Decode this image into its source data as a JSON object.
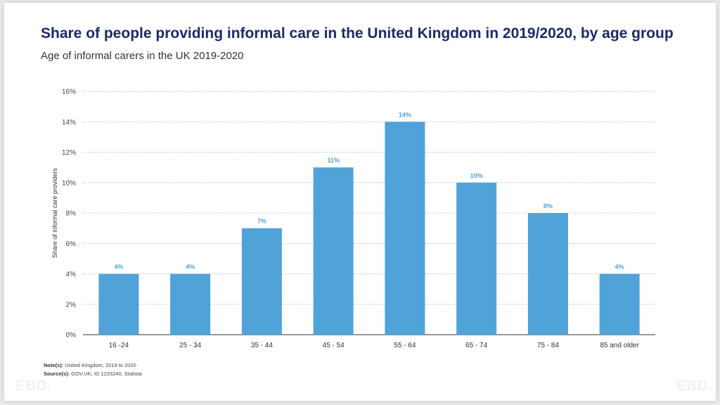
{
  "title": "Share of people providing informal care in the United Kingdom in 2019/2020, by age group",
  "subtitle": "Age of informal carers in the UK 2019-2020",
  "notes": {
    "note_label": "Note(s):",
    "note_text": " United Kingdom; 2019 to 2020",
    "source_label": "Source(s):",
    "source_text": " GOV.UK; ID 1233240, Statista"
  },
  "logo": "EBD.",
  "chart_data": {
    "type": "bar",
    "categories": [
      "16 -24",
      "25 - 34",
      "35 - 44",
      "45 - 54",
      "55 - 64",
      "65 - 74",
      "75 - 84",
      "85 and older"
    ],
    "values": [
      4,
      4,
      7,
      11,
      14,
      10,
      8,
      4
    ],
    "data_labels": [
      "4%",
      "4%",
      "7%",
      "11%",
      "14%",
      "10%",
      "8%",
      "4%"
    ],
    "xlabel": "",
    "ylabel": "Share of informal care providers",
    "ylim": [
      0,
      16
    ],
    "yticks": [
      "0%",
      "2%",
      "4%",
      "6%",
      "8%",
      "10%",
      "12%",
      "14%",
      "16%"
    ],
    "grid": true,
    "bar_color": "#4fa3d8",
    "label_color": "#4fa3d8"
  }
}
